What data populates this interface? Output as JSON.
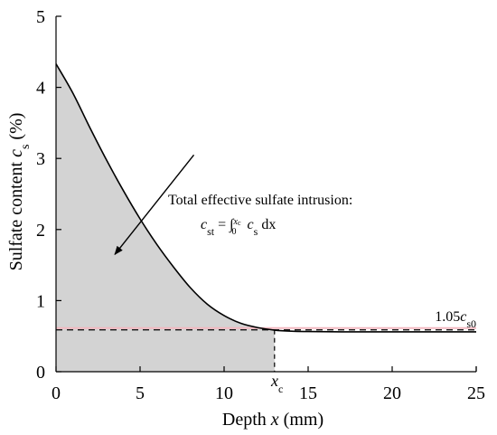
{
  "chart_data": {
    "type": "area",
    "xlabel": "Depth x (mm)",
    "ylabel": "Sulfate content c_s (%)",
    "xlim": [
      0,
      25
    ],
    "ylim": [
      0,
      5
    ],
    "x_ticks": [
      "0",
      "5",
      "10",
      "15",
      "20",
      "25"
    ],
    "y_ticks": [
      "0",
      "1",
      "2",
      "3",
      "4",
      "5"
    ],
    "grid": false,
    "series": [
      {
        "x": [
          0,
          1,
          2,
          3,
          4,
          5,
          6,
          7,
          8,
          9,
          10,
          11,
          12,
          13,
          14,
          15,
          17,
          20,
          25
        ],
        "y": [
          4.33,
          3.92,
          3.44,
          2.98,
          2.55,
          2.15,
          1.79,
          1.47,
          1.18,
          0.95,
          0.79,
          0.68,
          0.62,
          0.585,
          0.57,
          0.565,
          0.56,
          0.56,
          0.56
        ]
      }
    ],
    "reference_line": {
      "y": 0.588,
      "label_main": "1.05",
      "label_var": "c",
      "label_sub": "s0"
    },
    "critical_depth": {
      "x": 13.0,
      "label_var": "x",
      "label_sub": "c"
    },
    "annotation": {
      "line1": "Total effective sulfate intrusion:",
      "eq_lhs_var": "c",
      "eq_lhs_sub": "st",
      "eq_mid": " = ∫",
      "eq_upper": "x",
      "eq_upper_sub": "c",
      "eq_lower": "0",
      "eq_rhs_var": "c",
      "eq_rhs_sub": "s",
      "eq_tail": " dx",
      "arrow_from": [
        8.2,
        3.05
      ],
      "arrow_to": [
        3.5,
        1.65
      ]
    },
    "colors": {
      "fill": "#d3d3d3",
      "curve": "#000000",
      "reference_line": "#000000",
      "highlight": "#f2b8c0"
    }
  }
}
